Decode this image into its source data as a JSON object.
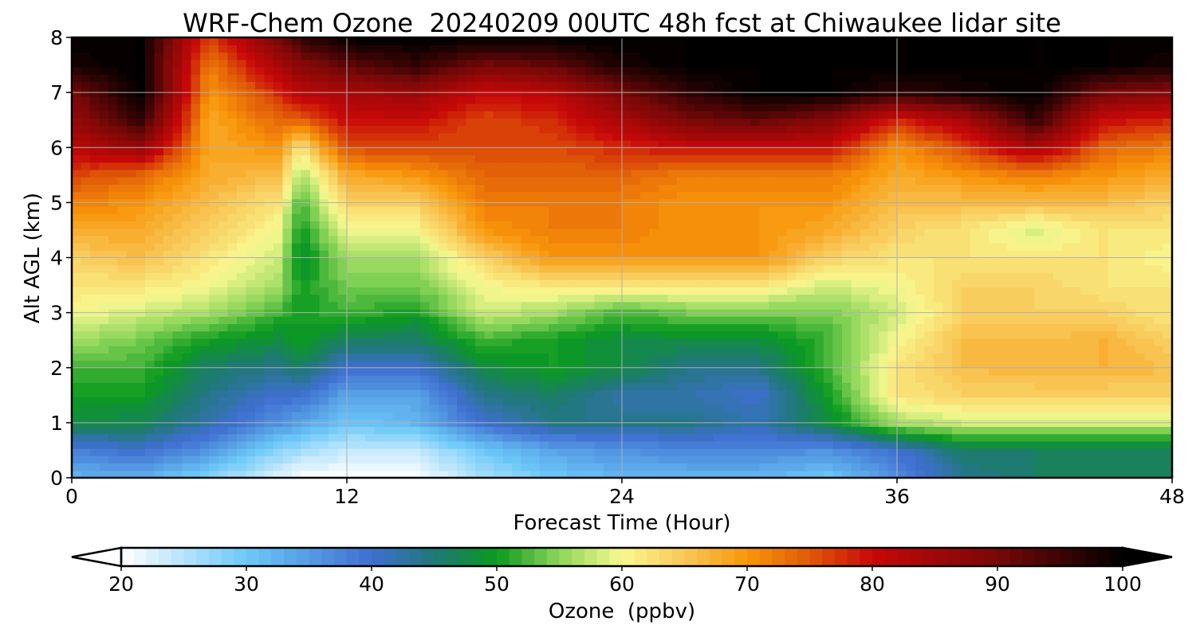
{
  "chart_data": {
    "type": "heatmap",
    "title": "WRF-Chem Ozone  20240209 00UTC 48h fcst at Chiwaukee lidar site",
    "xlabel": "Forecast Time (Hour)",
    "ylabel": "Alt AGL (km)",
    "xlim": [
      0,
      48
    ],
    "ylim": [
      0,
      8
    ],
    "x_ticks": [
      0,
      12,
      24,
      36,
      48
    ],
    "y_ticks": [
      0,
      1,
      2,
      3,
      4,
      5,
      6,
      7,
      8
    ],
    "grid": true,
    "x": [
      0,
      3,
      6,
      9,
      10,
      12,
      15,
      18,
      21,
      24,
      27,
      30,
      33,
      36,
      39,
      42,
      45,
      48
    ],
    "y": [
      0,
      0.5,
      1,
      1.5,
      2,
      2.5,
      3,
      3.5,
      4,
      4.5,
      5,
      5.5,
      6,
      6.5,
      7,
      7.5,
      8
    ],
    "z": [
      [
        32,
        33,
        28,
        22,
        20,
        20,
        20,
        26,
        30,
        32,
        32,
        32,
        30,
        36,
        44,
        46,
        46,
        46
      ],
      [
        38,
        40,
        36,
        28,
        26,
        24,
        24,
        30,
        34,
        36,
        37,
        37,
        36,
        40,
        46,
        46,
        46,
        46
      ],
      [
        48,
        47,
        42,
        36,
        34,
        30,
        32,
        40,
        44,
        44,
        44,
        42,
        48,
        56,
        58,
        58,
        58,
        58
      ],
      [
        50,
        50,
        44,
        40,
        40,
        34,
        34,
        44,
        46,
        42,
        42,
        40,
        50,
        62,
        64,
        64,
        64,
        64
      ],
      [
        52,
        52,
        46,
        44,
        46,
        40,
        40,
        48,
        50,
        48,
        44,
        44,
        52,
        62,
        66,
        67,
        67,
        66
      ],
      [
        56,
        54,
        50,
        48,
        50,
        46,
        46,
        52,
        50,
        48,
        48,
        48,
        52,
        60,
        66,
        66,
        67,
        64
      ],
      [
        60,
        58,
        56,
        52,
        50,
        52,
        50,
        58,
        56,
        52,
        54,
        54,
        54,
        58,
        64,
        64,
        64,
        62
      ],
      [
        62,
        62,
        60,
        56,
        50,
        54,
        54,
        60,
        62,
        62,
        62,
        62,
        58,
        60,
        64,
        64,
        62,
        62
      ],
      [
        64,
        66,
        62,
        58,
        48,
        56,
        56,
        64,
        70,
        70,
        70,
        70,
        64,
        62,
        62,
        62,
        62,
        60
      ],
      [
        68,
        68,
        64,
        60,
        50,
        60,
        60,
        70,
        72,
        72,
        70,
        70,
        68,
        64,
        62,
        58,
        62,
        62
      ],
      [
        72,
        70,
        66,
        62,
        52,
        64,
        64,
        72,
        72,
        72,
        70,
        70,
        70,
        66,
        66,
        66,
        66,
        64
      ],
      [
        76,
        74,
        68,
        66,
        56,
        68,
        70,
        74,
        74,
        74,
        72,
        72,
        72,
        68,
        70,
        72,
        70,
        68
      ],
      [
        82,
        86,
        68,
        70,
        62,
        76,
        76,
        76,
        76,
        78,
        80,
        80,
        80,
        70,
        76,
        84,
        74,
        72
      ],
      [
        86,
        96,
        68,
        74,
        74,
        80,
        80,
        76,
        78,
        84,
        90,
        92,
        88,
        78,
        84,
        96,
        80,
        78
      ],
      [
        90,
        100,
        70,
        78,
        82,
        84,
        86,
        80,
        82,
        90,
        96,
        100,
        100,
        96,
        98,
        100,
        90,
        88
      ],
      [
        98,
        100,
        72,
        84,
        88,
        92,
        96,
        90,
        92,
        98,
        100,
        100,
        100,
        100,
        100,
        100,
        100,
        98
      ],
      [
        100,
        100,
        76,
        90,
        96,
        100,
        100,
        100,
        100,
        100,
        100,
        100,
        100,
        100,
        100,
        100,
        100,
        100
      ]
    ],
    "colorbar": {
      "label": "Ozone  (ppbv)",
      "min": 20,
      "max": 100,
      "ticks": [
        20,
        30,
        40,
        50,
        60,
        70,
        80,
        90,
        100
      ],
      "extend": "both",
      "levels": 80,
      "colormap_stops": [
        [
          20,
          "#ffffff"
        ],
        [
          30,
          "#6cc8f8"
        ],
        [
          40,
          "#3f6fd0"
        ],
        [
          45,
          "#1f7878"
        ],
        [
          50,
          "#0a9a1e"
        ],
        [
          55,
          "#8dd65a"
        ],
        [
          60,
          "#f8f890"
        ],
        [
          65,
          "#f8c858"
        ],
        [
          70,
          "#f8960a"
        ],
        [
          75,
          "#e05a08"
        ],
        [
          80,
          "#c80808"
        ],
        [
          90,
          "#780808"
        ],
        [
          100,
          "#000000"
        ]
      ]
    }
  }
}
